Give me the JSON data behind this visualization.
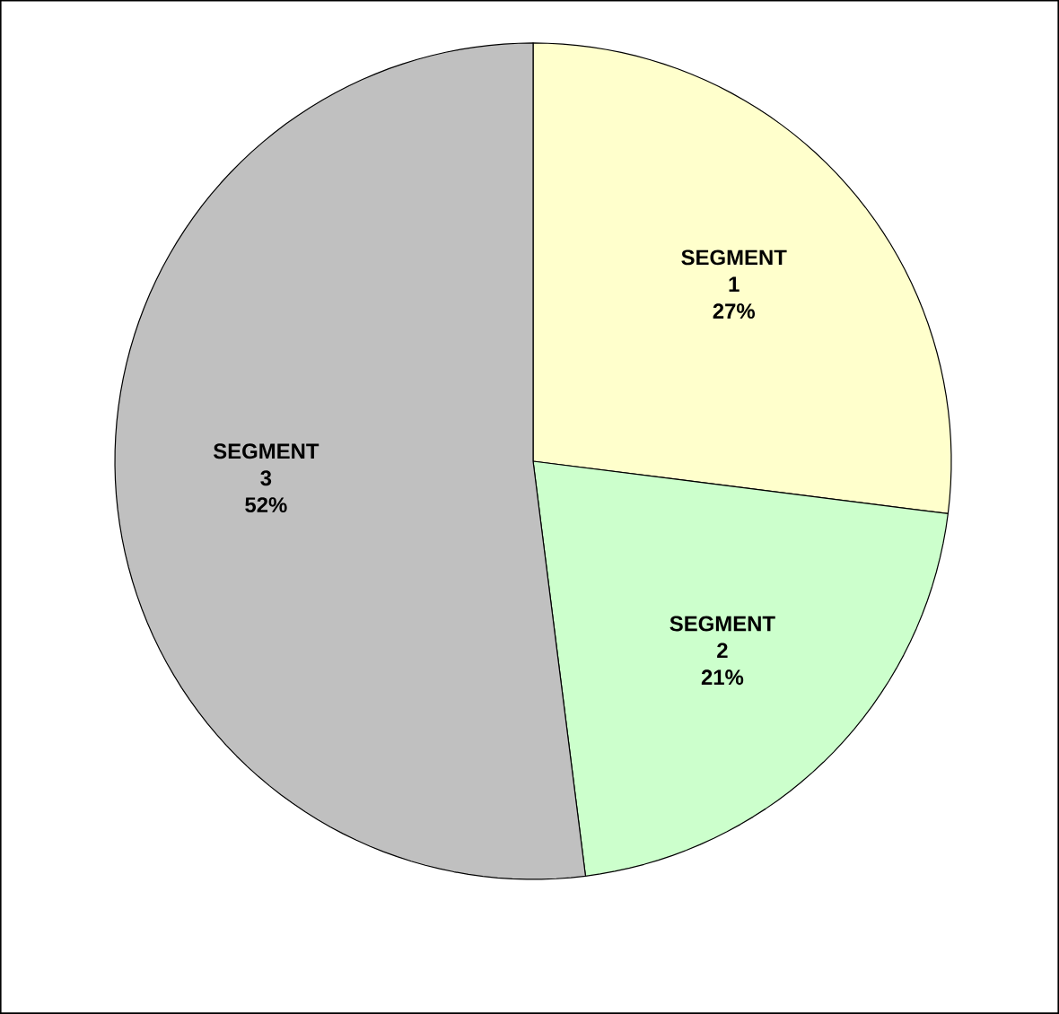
{
  "chart_data": {
    "type": "pie",
    "categories": [
      "SEGMENT 1",
      "SEGMENT 2",
      "SEGMENT 3"
    ],
    "values": [
      27,
      21,
      52
    ],
    "value_labels": [
      "27%",
      "21%",
      "52%"
    ],
    "colors": [
      "#ffffcc",
      "#ccffcc",
      "#c0c0c0"
    ]
  }
}
